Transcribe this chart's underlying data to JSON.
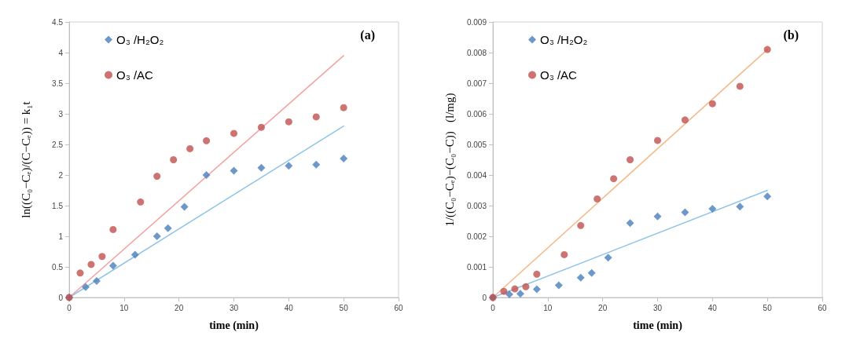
{
  "chart_data": [
    {
      "type": "scatter",
      "xlabel": "time (min)",
      "ylabel": "ln((C₀−Cₑ)/(C−Cₑ)) = k₁t",
      "annotations": [
        "(a)"
      ],
      "xlim": [
        0,
        60
      ],
      "xticks": [
        0,
        10,
        20,
        30,
        40,
        50,
        60
      ],
      "ylim": [
        0,
        4.5
      ],
      "yticks": [
        0,
        0.5,
        1,
        1.5,
        2,
        2.5,
        3,
        3.5,
        4,
        4.5
      ],
      "grid": false,
      "legend": "top left",
      "series": [
        {
          "name": "O₃ /H₂O₂",
          "color": "#4a7ebb",
          "marker": "diamond",
          "x": [
            0,
            3,
            5,
            8,
            12,
            16,
            18,
            21,
            25,
            30,
            35,
            40,
            45,
            50
          ],
          "values": [
            0,
            0.17,
            0.27,
            0.52,
            0.7,
            1.0,
            1.13,
            1.48,
            2.0,
            2.07,
            2.12,
            2.15,
            2.17,
            2.27
          ]
        },
        {
          "name": "O₃ /AC",
          "color": "#c0504d",
          "marker": "circle",
          "x": [
            0,
            2,
            4,
            6,
            8,
            13,
            16,
            19,
            22,
            25,
            30,
            35,
            40,
            45,
            50
          ],
          "values": [
            0,
            0.4,
            0.54,
            0.67,
            1.11,
            1.56,
            1.98,
            2.25,
            2.43,
            2.56,
            2.68,
            2.78,
            2.87,
            2.95,
            3.1
          ]
        },
        {
          "type": "line",
          "color": "#8fc3e8",
          "marker": "none",
          "x": [
            0,
            50
          ],
          "values": [
            0,
            2.8
          ]
        },
        {
          "type": "line",
          "color": "#f4a0a0",
          "marker": "none",
          "x": [
            0,
            50
          ],
          "values": [
            0,
            3.95
          ]
        }
      ]
    },
    {
      "type": "scatter",
      "xlabel": "time (min)",
      "ylabel": "1/((C₀−Cₑ)−(C₀−C))   (l/mg)",
      "annotations": [
        "(b)"
      ],
      "xlim": [
        0,
        60
      ],
      "xticks": [
        0,
        10,
        20,
        30,
        40,
        50,
        60
      ],
      "ylim": [
        0,
        0.009
      ],
      "yticks": [
        0,
        0.001,
        0.002,
        0.003,
        0.004,
        0.005,
        0.006,
        0.007,
        0.008,
        0.009
      ],
      "grid": false,
      "legend": "top left",
      "series": [
        {
          "name": "O₃ /H₂O₂",
          "color": "#4a7ebb",
          "marker": "diamond",
          "x": [
            0,
            3,
            5,
            8,
            12,
            16,
            18,
            21,
            25,
            30,
            35,
            40,
            45,
            50
          ],
          "values": [
            0,
            0.0001,
            0.00012,
            0.00027,
            0.0004,
            0.00065,
            0.0008,
            0.0013,
            0.00243,
            0.00265,
            0.00278,
            0.0029,
            0.00297,
            0.0033
          ]
        },
        {
          "name": "O₃ /AC",
          "color": "#c0504d",
          "marker": "circle",
          "x": [
            0,
            2,
            4,
            6,
            8,
            13,
            16,
            19,
            22,
            25,
            30,
            35,
            40,
            45,
            50
          ],
          "values": [
            0,
            0.0002,
            0.00028,
            0.00035,
            0.00076,
            0.0014,
            0.00235,
            0.00322,
            0.00388,
            0.0045,
            0.00513,
            0.0058,
            0.00633,
            0.0069,
            0.0081
          ]
        },
        {
          "type": "line",
          "color": "#8fc3e8",
          "marker": "none",
          "x": [
            0,
            50
          ],
          "values": [
            0,
            0.0035
          ]
        },
        {
          "type": "line",
          "color": "#f5b888",
          "marker": "none",
          "x": [
            0,
            50
          ],
          "values": [
            0,
            0.0081
          ]
        }
      ]
    }
  ]
}
